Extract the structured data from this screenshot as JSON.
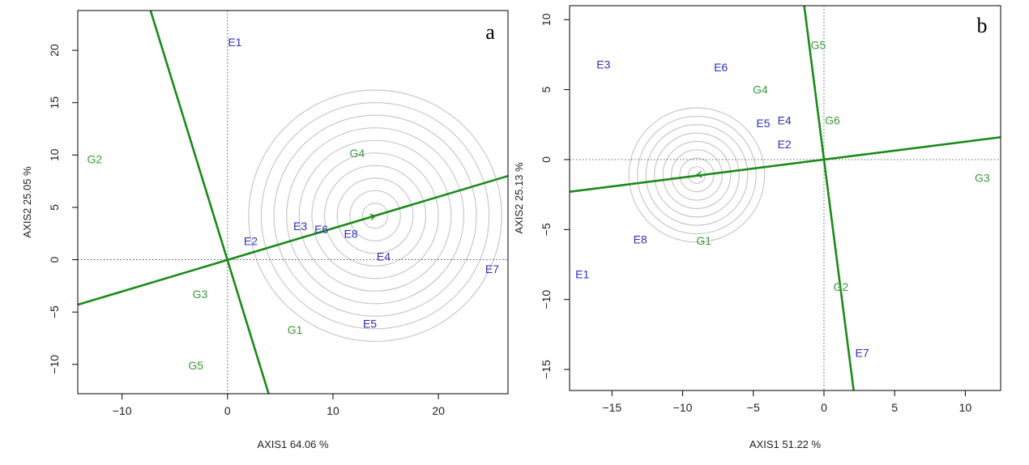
{
  "chart_data": [
    {
      "type": "scatter",
      "panel_letter": "a",
      "xlabel": "AXIS1 64.06 %",
      "ylabel": "AXIS2 25.05 %",
      "xlim": [
        -14.2,
        26.6
      ],
      "ylim": [
        -12.8,
        23.8
      ],
      "xticks": [
        -10,
        0,
        10,
        20
      ],
      "yticks": [
        -10,
        -5,
        0,
        5,
        10,
        15,
        20
      ],
      "xtick_labels": [
        "−10",
        "0",
        "10",
        "20"
      ],
      "ytick_labels": [
        "−10",
        "−5",
        "0",
        "5",
        "10",
        "15",
        "20"
      ],
      "ideal_point": {
        "x": 14.0,
        "y": 4.2
      },
      "concentric_radii": [
        1.2,
        2.4,
        3.6,
        4.8,
        6.0,
        7.2,
        8.4,
        9.6,
        10.8,
        12.0
      ],
      "lines": [
        {
          "x1": -14.2,
          "y1": -4.3,
          "x2": 26.6,
          "y2": 8.0
        },
        {
          "x1": -7.3,
          "y1": 23.8,
          "x2": 3.9,
          "y2": -12.8
        }
      ],
      "environment_color": "#3030c0",
      "genotype_color": "#3a9a3a",
      "environments": [
        {
          "label": "E1",
          "x": 0.7,
          "y": 20.8
        },
        {
          "label": "E2",
          "x": 2.2,
          "y": 1.8
        },
        {
          "label": "E3",
          "x": 6.9,
          "y": 3.2
        },
        {
          "label": "E6",
          "x": 8.9,
          "y": 2.9
        },
        {
          "label": "E8",
          "x": 11.7,
          "y": 2.5
        },
        {
          "label": "E4",
          "x": 14.8,
          "y": 0.3
        },
        {
          "label": "E5",
          "x": 13.5,
          "y": -6.1
        },
        {
          "label": "E7",
          "x": 25.1,
          "y": -0.9
        }
      ],
      "genotypes": [
        {
          "label": "G2",
          "x": -12.6,
          "y": 9.6
        },
        {
          "label": "G4",
          "x": 12.3,
          "y": 10.2
        },
        {
          "label": "G3",
          "x": -2.6,
          "y": -3.3
        },
        {
          "label": "G1",
          "x": 6.4,
          "y": -6.7
        },
        {
          "label": "G5",
          "x": -3.0,
          "y": -10.1
        }
      ]
    },
    {
      "type": "scatter",
      "panel_letter": "b",
      "xlabel": "AXIS1 51.22 %",
      "ylabel": "AXIS2 25.13 %",
      "xlim": [
        -18.0,
        12.5
      ],
      "ylim": [
        -16.5,
        11.0
      ],
      "xticks": [
        -15,
        -10,
        -5,
        0,
        5,
        10
      ],
      "yticks": [
        -15,
        -10,
        -5,
        0,
        5,
        10
      ],
      "xtick_labels": [
        "−15",
        "−10",
        "−5",
        "0",
        "5",
        "10"
      ],
      "ytick_labels": [
        "−15",
        "−10",
        "−5",
        "0",
        "5",
        "10"
      ],
      "ideal_point": {
        "x": -9.0,
        "y": -1.1
      },
      "concentric_radii": [
        0.6,
        1.2,
        1.8,
        2.4,
        3.0,
        3.6,
        4.2,
        4.8
      ],
      "lines": [
        {
          "x1": -18.0,
          "y1": -2.3,
          "x2": 12.5,
          "y2": 1.6
        },
        {
          "x1": -1.4,
          "y1": 11.0,
          "x2": 2.1,
          "y2": -16.5
        }
      ],
      "environment_color": "#3030c0",
      "genotype_color": "#3a9a3a",
      "environments": [
        {
          "label": "E3",
          "x": -15.6,
          "y": 6.8
        },
        {
          "label": "E6",
          "x": -7.3,
          "y": 6.6
        },
        {
          "label": "E5",
          "x": -4.3,
          "y": 2.6
        },
        {
          "label": "E4",
          "x": -2.8,
          "y": 2.8
        },
        {
          "label": "E2",
          "x": -2.8,
          "y": 1.1
        },
        {
          "label": "E8",
          "x": -13.0,
          "y": -5.7
        },
        {
          "label": "E1",
          "x": -17.1,
          "y": -8.2
        },
        {
          "label": "E7",
          "x": 2.7,
          "y": -13.8
        }
      ],
      "genotypes": [
        {
          "label": "G5",
          "x": -0.4,
          "y": 8.2
        },
        {
          "label": "G4",
          "x": -4.5,
          "y": 5.0
        },
        {
          "label": "G6",
          "x": 0.6,
          "y": 2.8
        },
        {
          "label": "G3",
          "x": 11.2,
          "y": -1.3
        },
        {
          "label": "G1",
          "x": -8.5,
          "y": -5.8
        },
        {
          "label": "G2",
          "x": 1.2,
          "y": -9.1
        }
      ]
    }
  ]
}
